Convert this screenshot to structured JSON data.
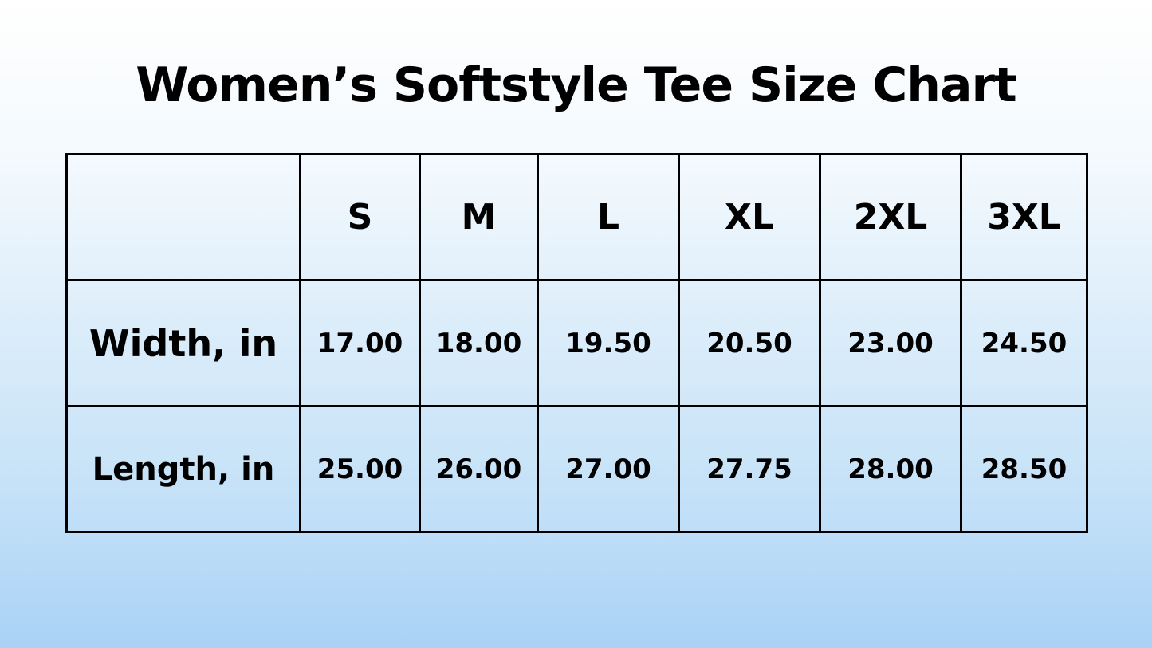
{
  "title": "Women’s Softstyle Tee Size Chart",
  "sizes": [
    "S",
    "M",
    "L",
    "XL",
    "2XL",
    "3XL"
  ],
  "rows": [
    {
      "label": "Width, in",
      "values": [
        "17.00",
        "18.00",
        "19.50",
        "20.50",
        "23.00",
        "24.50"
      ]
    },
    {
      "label": "Length, in",
      "values": [
        "25.00",
        "26.00",
        "27.00",
        "27.75",
        "28.00",
        "28.50"
      ]
    }
  ]
}
